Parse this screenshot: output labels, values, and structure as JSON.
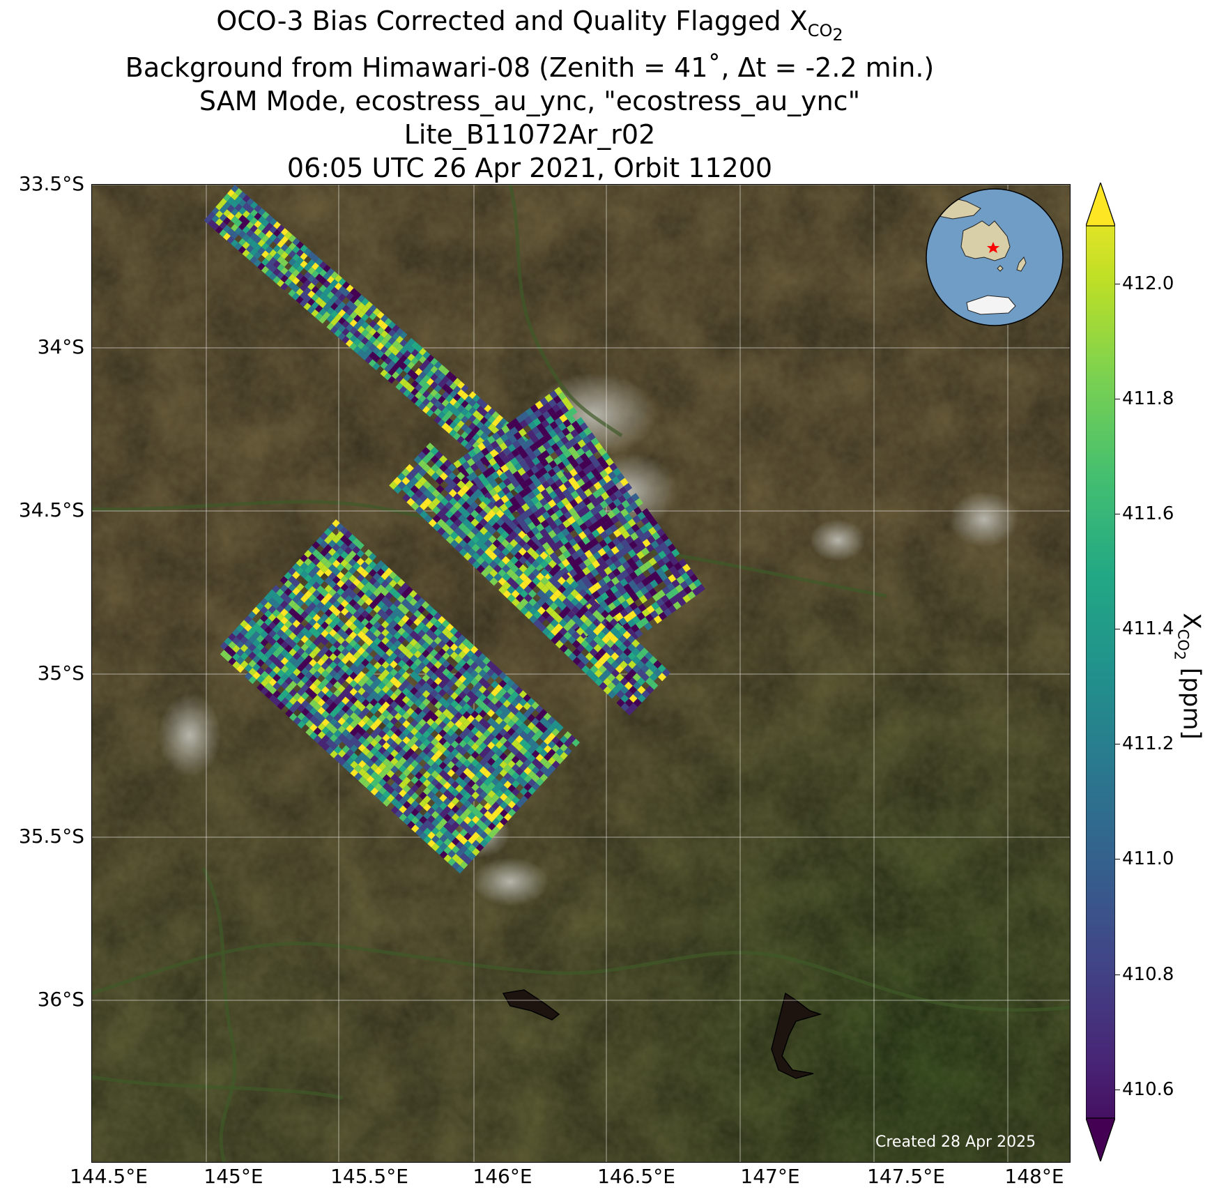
{
  "title": {
    "line1_main": "OCO-3 Bias Corrected and Quality Flagged X",
    "line1_sub": "CO",
    "line1_subsub": "2",
    "line2": "Background from Himawari-08 (Zenith = 41$^\\circ$, Δt = -2.2 min.)",
    "line2_display": "Background from Himawari-08 (Zenith = 41˚, Δt = -2.2 min.)",
    "line3": "SAM Mode, ecostress_au_ync, \"ecostress_au_ync\"",
    "line4": "Lite_B11072Ar_r02",
    "line5": "06:05 UTC 26 Apr 2021, Orbit 11200"
  },
  "map": {
    "lat_ticks": [
      "33.5°S",
      "34°S",
      "34.5°S",
      "35°S",
      "35.5°S",
      "36°S"
    ],
    "lon_ticks": [
      "144.5°E",
      "145°E",
      "145.5°E",
      "146°E",
      "146.5°E",
      "147°E",
      "147.5°E",
      "148°E"
    ],
    "created": "Created 28 Apr 2025",
    "background_colors": {
      "land": "#6a5a37",
      "forest": "#3f5a22",
      "cloud": "#b8b8b0"
    }
  },
  "inset": {
    "ocean_color": "#6f9dc6",
    "land_color": "#d8cfa8",
    "marker_color": "#ff0000"
  },
  "colorbar": {
    "label_main": "X",
    "label_sub": "CO",
    "label_subsub": "2",
    "label_units": " [ppm]",
    "ticks": [
      "410.6",
      "410.8",
      "411.0",
      "411.2",
      "411.4",
      "411.6",
      "411.8",
      "412.0"
    ],
    "range": [
      410.55,
      412.1
    ],
    "colormap": "viridis"
  }
}
